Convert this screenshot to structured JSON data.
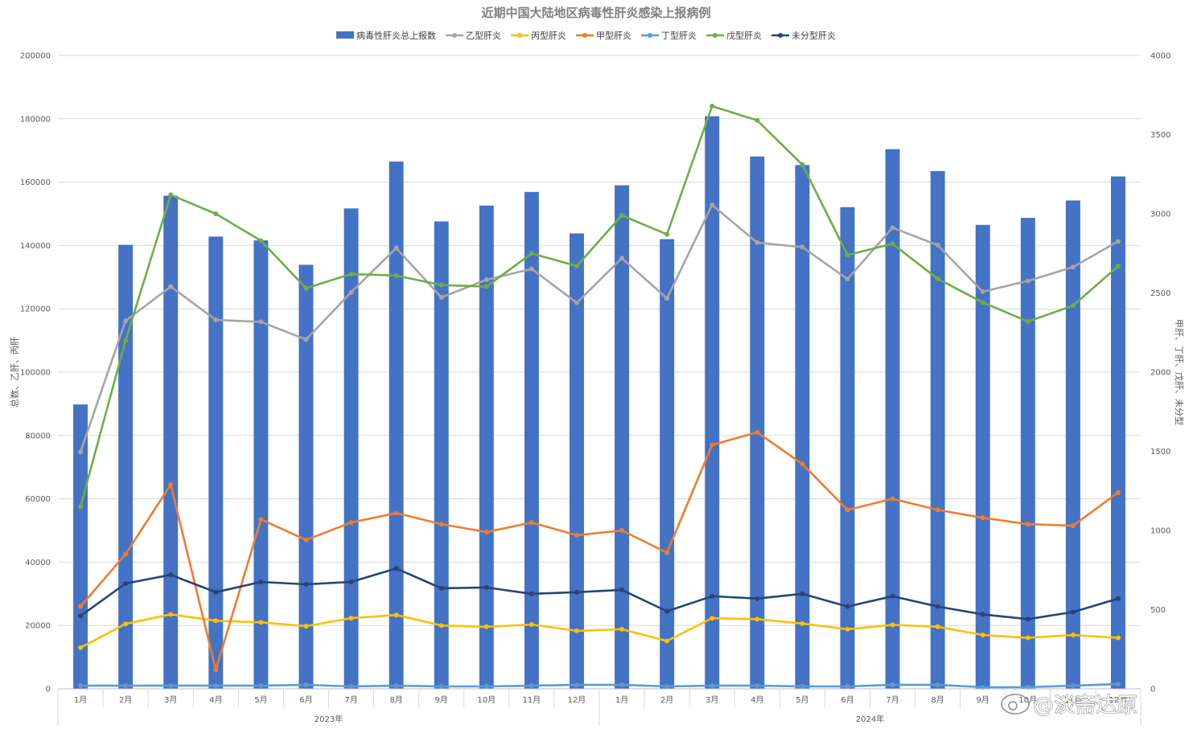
{
  "chart_data": {
    "type": "bar+line",
    "title": "近期中国大陆地区病毒性肝炎感染上报病例",
    "ylabel_left": "总数、乙肝、丙肝",
    "ylabel_right": "甲肝、丁肝、戊肝、未分型",
    "ylim_left": [
      0,
      200000
    ],
    "ylim_right": [
      0,
      4000
    ],
    "yticks_left": [
      "0",
      "20000",
      "40000",
      "60000",
      "80000",
      "100000",
      "120000",
      "140000",
      "160000",
      "180000",
      "200000"
    ],
    "yticks_right": [
      "0",
      "500",
      "1000",
      "1500",
      "2000",
      "2500",
      "3000",
      "3500",
      "4000"
    ],
    "grid": true,
    "legend_position": "top",
    "categories": [
      "1月",
      "2月",
      "3月",
      "4月",
      "5月",
      "6月",
      "7月",
      "8月",
      "9月",
      "10月",
      "11月",
      "12月",
      "1月",
      "2月",
      "3月",
      "4月",
      "5月",
      "6月",
      "7月",
      "8月",
      "9月",
      "10月",
      "11月",
      "12月"
    ],
    "groups": [
      {
        "label": "2023年",
        "from": 0,
        "to": 11
      },
      {
        "label": "2024年",
        "from": 12,
        "to": 23
      }
    ],
    "series": [
      {
        "name": "病毒性肝炎总上报数",
        "kind": "bar",
        "axis": "left",
        "color": "#4472c4",
        "values": [
          89800,
          140200,
          155700,
          142800,
          141600,
          133900,
          151700,
          166500,
          147600,
          152600,
          156900,
          143800,
          159000,
          142000,
          180800,
          168100,
          165400,
          152100,
          170400,
          163500,
          146500,
          148700,
          154200,
          161800
        ]
      },
      {
        "name": "乙型肝炎",
        "kind": "line",
        "axis": "left",
        "color": "#a5a5a5",
        "values": [
          74800,
          116200,
          127000,
          116500,
          115900,
          110300,
          125200,
          139200,
          123600,
          129200,
          132600,
          121900,
          136000,
          123300,
          152800,
          140900,
          139500,
          129400,
          145600,
          140100,
          125400,
          128800,
          133200,
          141300
        ]
      },
      {
        "name": "丙型肝炎",
        "kind": "line",
        "axis": "left",
        "color": "#ffc000",
        "values": [
          13000,
          20500,
          23500,
          21500,
          21000,
          19800,
          22300,
          23300,
          20000,
          19600,
          20300,
          18300,
          18800,
          15100,
          22300,
          22000,
          20600,
          18800,
          20200,
          19600,
          17000,
          16100,
          17000,
          16100
        ]
      },
      {
        "name": "甲型肝炎",
        "kind": "line",
        "axis": "right",
        "color": "#ed7d31",
        "values": [
          520,
          850,
          1290,
          120,
          1070,
          940,
          1050,
          1110,
          1040,
          990,
          1050,
          970,
          1000,
          860,
          1540,
          1620,
          1420,
          1130,
          1200,
          1130,
          1080,
          1040,
          1030,
          1240
        ]
      },
      {
        "name": "丁型肝炎",
        "kind": "line",
        "axis": "right",
        "color": "#5b9bd5",
        "values": [
          20,
          20,
          20,
          20,
          20,
          25,
          15,
          20,
          15,
          15,
          20,
          25,
          25,
          15,
          20,
          20,
          15,
          15,
          25,
          25,
          10,
          10,
          20,
          30
        ]
      },
      {
        "name": "戊型肝炎",
        "kind": "line",
        "axis": "right",
        "color": "#70ad47",
        "values": [
          1150,
          2200,
          3120,
          3000,
          2830,
          2530,
          2620,
          2610,
          2550,
          2540,
          2750,
          2670,
          2990,
          2870,
          3680,
          3590,
          3310,
          2740,
          2810,
          2590,
          2440,
          2320,
          2420,
          2670
        ]
      },
      {
        "name": "未分型肝炎",
        "kind": "line",
        "axis": "right",
        "color": "#264478",
        "values": [
          460,
          665,
          720,
          610,
          675,
          660,
          675,
          760,
          635,
          640,
          600,
          610,
          625,
          490,
          585,
          570,
          600,
          520,
          585,
          520,
          470,
          440,
          485,
          570
        ]
      }
    ]
  },
  "watermark": "@淡斋达原"
}
